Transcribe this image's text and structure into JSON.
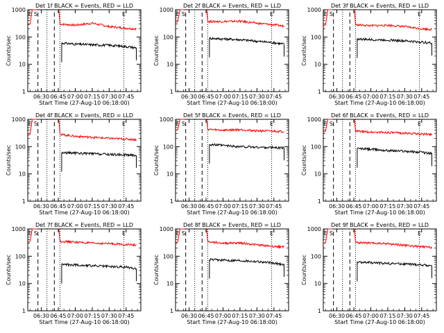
{
  "figure": {
    "xlabel": "Start Time (27-Aug-10 06:18:00)",
    "ylabel": "Counts/sec",
    "xticks": [
      "06:30",
      "06:45",
      "07:00",
      "07:15",
      "07:30",
      "07:45"
    ],
    "xtick_minutes": [
      30,
      45,
      60,
      75,
      90,
      105
    ],
    "yticks": [
      "1",
      "10",
      "100",
      "1000"
    ],
    "yscale": "log",
    "ylim": [
      1,
      1000
    ],
    "xlim_minutes": [
      18,
      118
    ],
    "series_colors": {
      "events": "#000000",
      "lld": "#ff0000"
    },
    "markers": {
      "dashed_minutes": [
        27,
        41.5
      ],
      "dotted_minutes": [
        35,
        46.5,
        103
      ],
      "labels": [
        {
          "text": "E",
          "minute": 20
        },
        {
          "text": "S",
          "minute": 25
        },
        {
          "text": "E",
          "minute": 103
        }
      ]
    }
  },
  "chart_data": [
    {
      "type": "line",
      "title": "Det 1f BLACK = Events, RED = LLD",
      "series": [
        {
          "x": [
            46.5,
            60,
            75,
            90,
            105,
            114
          ],
          "values": [
            300,
            270,
            320,
            240,
            210,
            200
          ]
        },
        {
          "x": [
            48,
            60,
            75,
            90,
            105,
            114
          ],
          "values": [
            60,
            55,
            52,
            50,
            45,
            40
          ]
        }
      ]
    },
    {
      "type": "line",
      "title": "Det 2f BLACK = Events, RED = LLD",
      "series": [
        {
          "x": [
            46.5,
            60,
            75,
            90,
            105,
            114
          ],
          "values": [
            370,
            370,
            380,
            320,
            280,
            250
          ]
        },
        {
          "x": [
            48,
            60,
            75,
            90,
            105,
            114
          ],
          "values": [
            90,
            85,
            80,
            70,
            62,
            55
          ]
        }
      ]
    },
    {
      "type": "line",
      "title": "Det 3f BLACK = Events, RED = LLD",
      "series": [
        {
          "x": [
            46.5,
            60,
            75,
            90,
            105,
            114
          ],
          "values": [
            280,
            260,
            270,
            240,
            200,
            190
          ]
        },
        {
          "x": [
            48,
            60,
            75,
            90,
            105,
            114
          ],
          "values": [
            85,
            80,
            78,
            72,
            65,
            60
          ]
        }
      ]
    },
    {
      "type": "line",
      "title": "Det 4f BLACK = Events, RED = LLD",
      "series": [
        {
          "x": [
            46.5,
            60,
            75,
            90,
            105,
            114
          ],
          "values": [
            280,
            240,
            220,
            200,
            190,
            180
          ]
        },
        {
          "x": [
            48,
            60,
            75,
            90,
            105,
            114
          ],
          "values": [
            60,
            58,
            55,
            52,
            50,
            48
          ]
        }
      ]
    },
    {
      "type": "line",
      "title": "Det 5f BLACK = Events, RED = LLD",
      "series": [
        {
          "x": [
            46.5,
            60,
            75,
            90,
            105,
            114
          ],
          "values": [
            430,
            400,
            420,
            380,
            370,
            360
          ]
        },
        {
          "x": [
            48,
            60,
            75,
            90,
            105,
            114
          ],
          "values": [
            120,
            110,
            100,
            95,
            92,
            90
          ]
        }
      ]
    },
    {
      "type": "line",
      "title": "Det 6f BLACK = Events, RED = LLD",
      "series": [
        {
          "x": [
            46.5,
            60,
            75,
            90,
            105,
            114
          ],
          "values": [
            370,
            340,
            330,
            310,
            290,
            280
          ]
        },
        {
          "x": [
            48,
            60,
            75,
            90,
            105,
            114
          ],
          "values": [
            85,
            80,
            72,
            68,
            62,
            55
          ]
        }
      ]
    },
    {
      "type": "line",
      "title": "Det 7f BLACK = Events, RED = LLD",
      "series": [
        {
          "x": [
            46.5,
            60,
            75,
            90,
            105,
            114
          ],
          "values": [
            350,
            330,
            300,
            290,
            270,
            260
          ]
        },
        {
          "x": [
            48,
            60,
            75,
            90,
            105,
            114
          ],
          "values": [
            50,
            48,
            45,
            42,
            40,
            35
          ]
        }
      ]
    },
    {
      "type": "line",
      "title": "Det 8f BLACK = Events, RED = LLD",
      "series": [
        {
          "x": [
            46.5,
            60,
            75,
            90,
            105,
            114
          ],
          "values": [
            340,
            300,
            310,
            260,
            230,
            220
          ]
        },
        {
          "x": [
            48,
            60,
            75,
            90,
            105,
            114
          ],
          "values": [
            75,
            72,
            70,
            65,
            55,
            50
          ]
        }
      ]
    },
    {
      "type": "line",
      "title": "Det 9f BLACK = Events, RED = LLD",
      "series": [
        {
          "x": [
            46.5,
            60,
            75,
            90,
            105,
            114
          ],
          "values": [
            320,
            300,
            290,
            250,
            220,
            210
          ]
        },
        {
          "x": [
            48,
            60,
            75,
            90,
            105,
            114
          ],
          "values": [
            60,
            58,
            55,
            52,
            48,
            45
          ]
        }
      ]
    }
  ]
}
